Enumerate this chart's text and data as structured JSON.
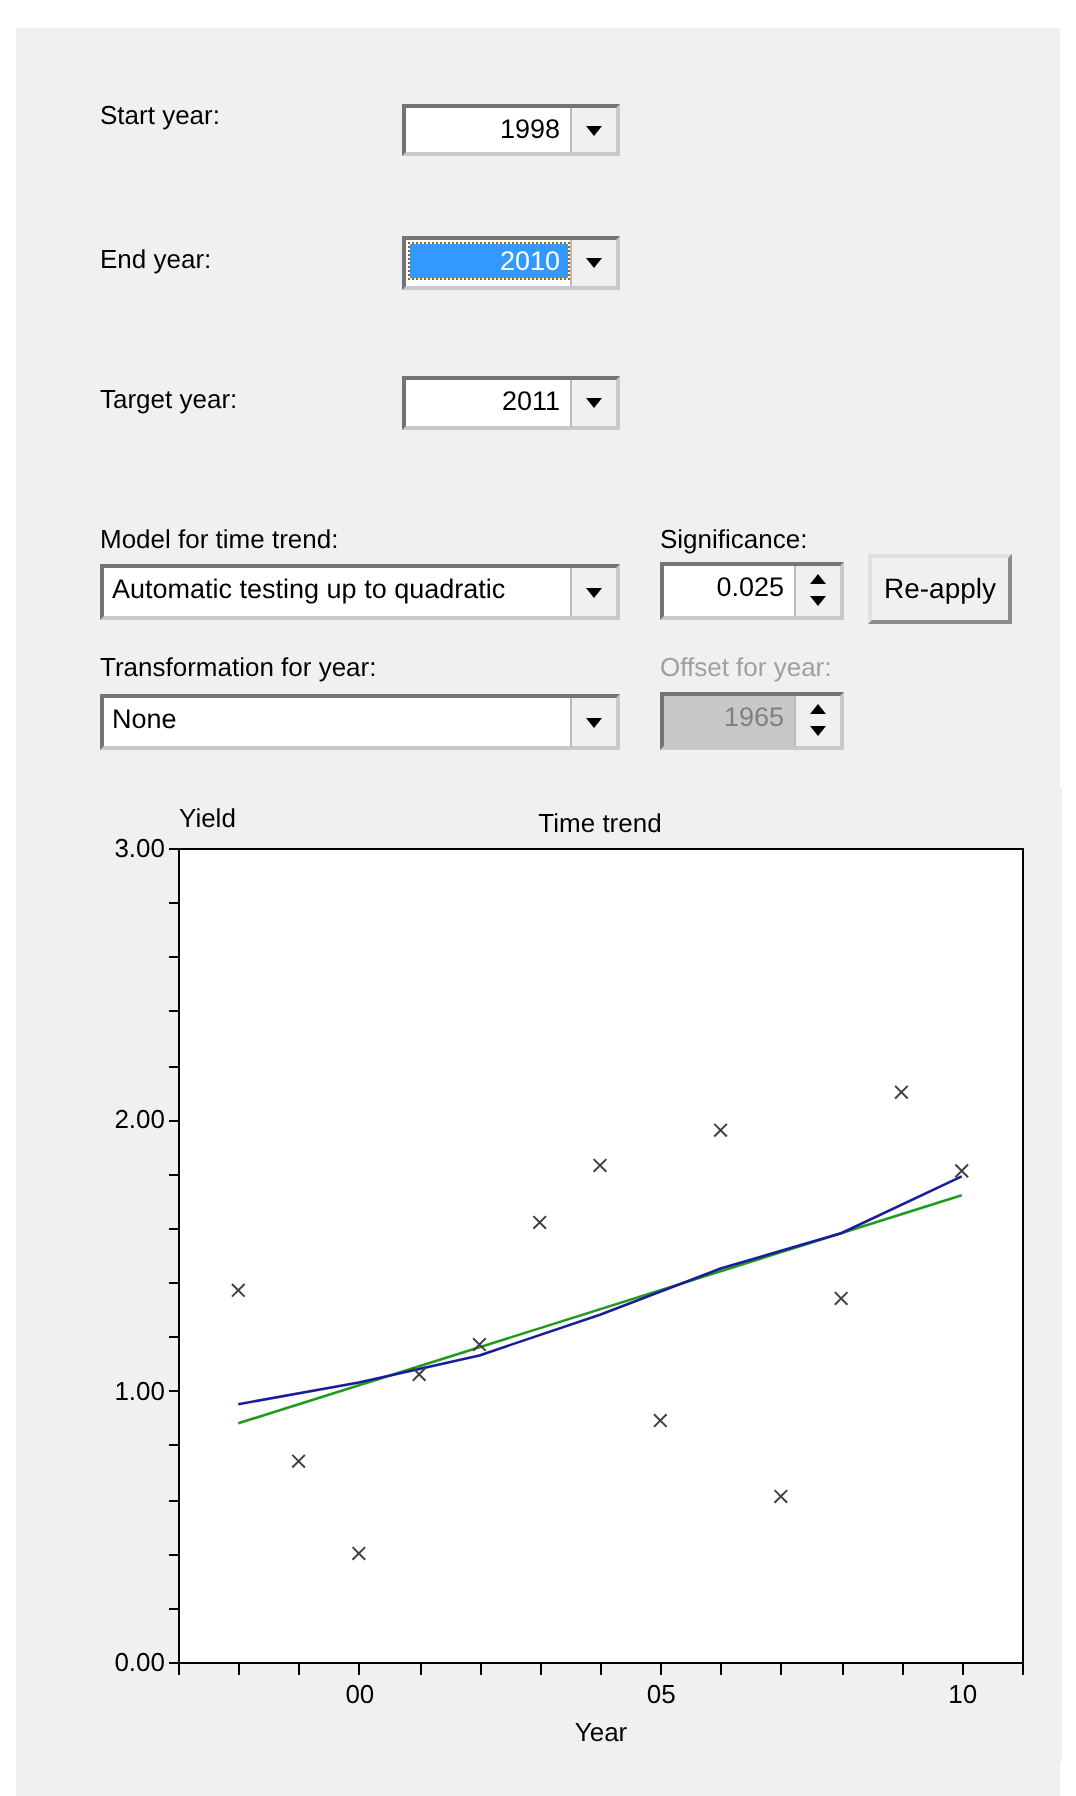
{
  "chart_data": {
    "type": "scatter",
    "title": "Time trend",
    "xlabel": "Year",
    "ylabel": "Yield",
    "annotations": [
      "Start year:",
      "1998",
      "End year:",
      "2010",
      "Target year:",
      "2011",
      "Model for time trend:",
      "Automatic testing up to quadratic",
      "Significance:",
      "0.025",
      "Re-apply",
      "Transformation for year:",
      "None",
      "Offset for year:",
      "1965"
    ],
    "x": [
      -2,
      -1,
      0,
      1,
      2,
      3,
      4,
      5,
      6,
      7,
      8,
      9,
      10
    ],
    "series": [
      {
        "color": "#404040",
        "marker": "cross",
        "values": [
          1.37,
          0.74,
          0.4,
          1.06,
          1.17,
          1.62,
          1.83,
          0.89,
          1.96,
          0.61,
          1.34,
          2.1,
          1.81
        ]
      },
      {
        "type": "line",
        "color": "#1f9a1f",
        "x": [
          -2,
          10
        ],
        "values": [
          0.88,
          1.72
        ]
      },
      {
        "type": "line",
        "color": "#1a1a9a",
        "x": [
          -2,
          0,
          2,
          4,
          6,
          8,
          10
        ],
        "values": [
          0.95,
          1.03,
          1.13,
          1.28,
          1.45,
          1.58,
          1.79
        ]
      }
    ],
    "xlim": [
      -3,
      11
    ],
    "xticks": [
      {
        "value": -3,
        "label": null
      },
      {
        "value": -2,
        "label": null
      },
      {
        "value": -1,
        "label": null
      },
      {
        "value": 0,
        "label": "00"
      },
      {
        "value": 1,
        "label": null
      },
      {
        "value": 2,
        "label": null
      },
      {
        "value": 3,
        "label": null
      },
      {
        "value": 4,
        "label": null
      },
      {
        "value": 5,
        "label": "05"
      },
      {
        "value": 6,
        "label": null
      },
      {
        "value": 7,
        "label": null
      },
      {
        "value": 8,
        "label": null
      },
      {
        "value": 9,
        "label": null
      },
      {
        "value": 10,
        "label": "10"
      },
      {
        "value": 11,
        "label": null
      }
    ],
    "ylim": [
      0,
      3
    ],
    "yticks": [
      {
        "value": 0,
        "label": "0.00"
      },
      {
        "value": 0.2,
        "label": null
      },
      {
        "value": 0.4,
        "label": null
      },
      {
        "value": 0.6,
        "label": null
      },
      {
        "value": 0.8,
        "label": null
      },
      {
        "value": 1,
        "label": "1.00"
      },
      {
        "value": 1.2,
        "label": null
      },
      {
        "value": 1.4,
        "label": null
      },
      {
        "value": 1.6,
        "label": null
      },
      {
        "value": 1.8,
        "label": null
      },
      {
        "value": 2,
        "label": "2.00"
      },
      {
        "value": 2.2,
        "label": null
      },
      {
        "value": 2.4,
        "label": null
      },
      {
        "value": 2.6,
        "label": null
      },
      {
        "value": 2.8,
        "label": null
      },
      {
        "value": 3,
        "label": "3.00"
      }
    ],
    "grid": false,
    "line_style": "solid"
  }
}
